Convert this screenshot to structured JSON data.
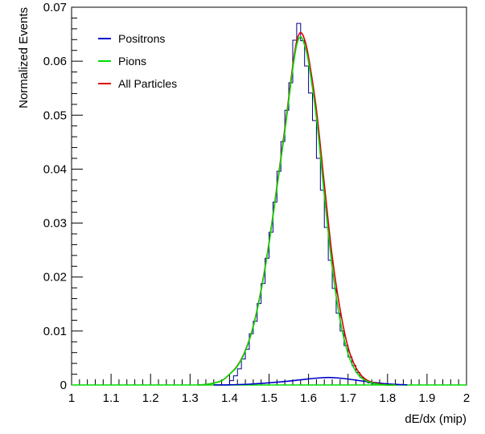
{
  "chart_data": {
    "type": "line",
    "title": "",
    "xlabel": "dE/dx (mip)",
    "ylabel": "Normalized Events",
    "xlim": [
      1.0,
      2.0
    ],
    "ylim": [
      0.0,
      0.07
    ],
    "xticks": [
      1.0,
      1.1,
      1.2,
      1.3,
      1.4,
      1.5,
      1.6,
      1.7,
      1.8,
      1.9,
      2.0
    ],
    "xtick_labels": [
      "1",
      "1.1",
      "1.2",
      "1.3",
      "1.4",
      "1.5",
      "1.6",
      "1.7",
      "1.8",
      "1.9",
      "2"
    ],
    "yticks": [
      0,
      0.01,
      0.02,
      0.03,
      0.04,
      0.05,
      0.06,
      0.07
    ],
    "ytick_labels": [
      "0",
      "0.01",
      "0.02",
      "0.03",
      "0.04",
      "0.05",
      "0.06",
      "0.07"
    ],
    "grid": false,
    "legend_position": "top-left",
    "histogram": {
      "color": "#00008b",
      "bin_width": 0.01,
      "x": [
        1.4,
        1.41,
        1.42,
        1.43,
        1.44,
        1.45,
        1.46,
        1.47,
        1.48,
        1.49,
        1.5,
        1.51,
        1.52,
        1.53,
        1.54,
        1.55,
        1.56,
        1.57,
        1.58,
        1.59,
        1.6,
        1.61,
        1.62,
        1.63,
        1.64,
        1.65,
        1.66,
        1.67,
        1.68,
        1.69,
        1.7,
        1.71,
        1.72,
        1.73,
        1.74,
        1.75,
        1.76,
        1.77,
        1.78,
        1.79
      ],
      "values": [
        0.0008,
        0.0017,
        0.003,
        0.0048,
        0.0066,
        0.0095,
        0.0118,
        0.0151,
        0.0188,
        0.0235,
        0.0283,
        0.0339,
        0.0396,
        0.0451,
        0.0509,
        0.056,
        0.0639,
        0.067,
        0.0638,
        0.0591,
        0.0541,
        0.049,
        0.042,
        0.0361,
        0.0292,
        0.0231,
        0.0179,
        0.0133,
        0.01,
        0.0073,
        0.0052,
        0.0036,
        0.0023,
        0.0014,
        0.0008,
        0.0004,
        0.0002,
        0.0001,
        0.0001,
        0.0
      ]
    },
    "series": [
      {
        "name": "Positrons",
        "color": "#0000cc",
        "x": [
          1.36,
          1.4,
          1.45,
          1.5,
          1.55,
          1.6,
          1.63,
          1.65,
          1.67,
          1.7,
          1.75,
          1.8,
          1.85
        ],
        "values": [
          0.0,
          3e-05,
          0.00015,
          0.0004,
          0.00072,
          0.00112,
          0.00132,
          0.00138,
          0.00132,
          0.0011,
          0.0006,
          0.0002,
          3e-05
        ]
      },
      {
        "name": "Pions",
        "color": "#00dd00",
        "x": [
          1.32,
          1.35,
          1.38,
          1.4,
          1.42,
          1.44,
          1.46,
          1.48,
          1.5,
          1.52,
          1.54,
          1.55,
          1.56,
          1.57,
          1.58,
          1.59,
          1.6,
          1.62,
          1.64,
          1.66,
          1.68,
          1.7,
          1.72,
          1.74,
          1.76,
          1.78,
          1.8,
          1.82
        ],
        "values": [
          0.0,
          0.0002,
          0.0008,
          0.002,
          0.0035,
          0.0063,
          0.0108,
          0.0175,
          0.0262,
          0.0365,
          0.047,
          0.0528,
          0.0585,
          0.063,
          0.0645,
          0.063,
          0.0598,
          0.0495,
          0.0352,
          0.0218,
          0.012,
          0.0058,
          0.0025,
          0.001,
          0.0004,
          0.0001,
          0.0,
          0.0
        ]
      },
      {
        "name": "All Particles",
        "color": "#dd0000",
        "x": [
          1.32,
          1.35,
          1.38,
          1.4,
          1.42,
          1.44,
          1.46,
          1.48,
          1.5,
          1.52,
          1.54,
          1.55,
          1.56,
          1.57,
          1.58,
          1.59,
          1.6,
          1.62,
          1.64,
          1.66,
          1.68,
          1.7,
          1.72,
          1.74,
          1.76,
          1.78,
          1.8,
          1.82
        ],
        "values": [
          0.0,
          0.0002,
          0.0008,
          0.002,
          0.0036,
          0.0064,
          0.0109,
          0.0177,
          0.0264,
          0.0368,
          0.0475,
          0.0533,
          0.0591,
          0.0637,
          0.0653,
          0.064,
          0.0608,
          0.051,
          0.0372,
          0.0238,
          0.014,
          0.007,
          0.0032,
          0.0013,
          0.0005,
          0.0002,
          0.0,
          0.0
        ]
      }
    ]
  }
}
